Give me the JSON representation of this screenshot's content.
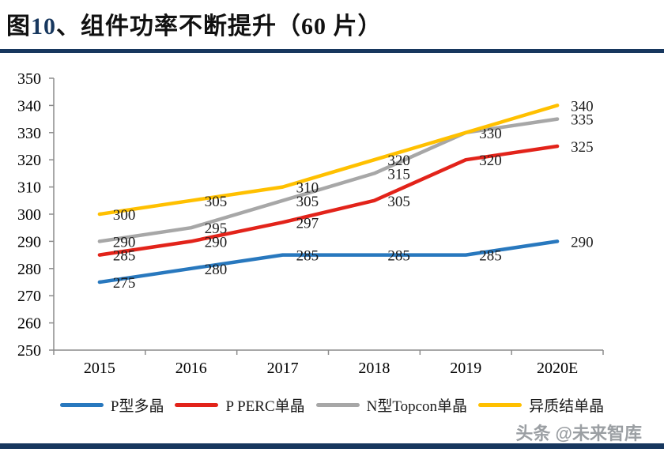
{
  "title": {
    "prefix": "图",
    "num": "10",
    "rest": "、组件功率不断提升（60 片）"
  },
  "watermark": "头条 @未来智库",
  "colors": {
    "navy": "#17375E",
    "axis": "#8c8c8c",
    "tick_label": "#000000",
    "data_label": "#1a1a1a"
  },
  "chart_data": {
    "type": "line",
    "title": "组件功率不断提升（60 片）",
    "categories": [
      "2015",
      "2016",
      "2017",
      "2018",
      "2019",
      "2020E"
    ],
    "series": [
      {
        "name": "P型多晶",
        "color": "#2878BE",
        "values": [
          275,
          280,
          285,
          285,
          285,
          290
        ],
        "labels": [
          "275",
          "280",
          "285",
          "285",
          "285",
          "290"
        ]
      },
      {
        "name": "P PERC单晶",
        "color": "#E2231A",
        "values": [
          285,
          290,
          297,
          305,
          320,
          325
        ],
        "labels": [
          "285",
          "290",
          "297",
          "305",
          "320",
          "325"
        ]
      },
      {
        "name": "N型Topcon单晶",
        "color": "#A7A7A7",
        "values": [
          290,
          295,
          305,
          315,
          330,
          335
        ],
        "labels": [
          "290",
          "295",
          "305",
          "315",
          "330",
          "335"
        ]
      },
      {
        "name": "异质结单晶",
        "color": "#FFC000",
        "values": [
          300,
          305,
          310,
          320,
          330,
          340
        ],
        "labels": [
          "300",
          "305",
          "310",
          "320",
          "",
          "340"
        ]
      }
    ],
    "xlabel": "",
    "ylabel": "",
    "ylim": [
      250,
      350
    ],
    "ytick_step": 10,
    "grid": false,
    "data_labels": true,
    "legend_position": "bottom"
  }
}
